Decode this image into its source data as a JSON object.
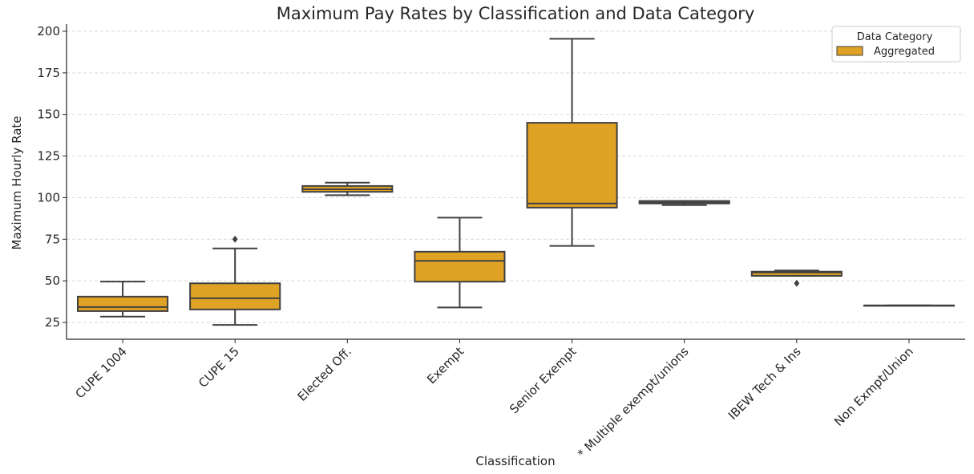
{
  "chart_data": {
    "type": "box",
    "title": "Maximum Pay Rates by Classification and Data Category",
    "xlabel": "Classification",
    "ylabel": "Maximum Hourly Rate",
    "ylim": [
      15,
      205
    ],
    "yticks": [
      25,
      50,
      75,
      100,
      125,
      150,
      175,
      200
    ],
    "grid": true,
    "legend": {
      "title": "Data Category",
      "position": "top-right",
      "entries": [
        {
          "label": "Aggregated",
          "color": "#e0a224"
        }
      ]
    },
    "categories": [
      "CUPE 1004",
      "CUPE 15",
      "Elected Off.",
      "Exempt",
      "Senior Exempt",
      "* Multiple exempt/unions",
      "IBEW Tech & Ins",
      "Non Exmpt/Union"
    ],
    "series": [
      {
        "name": "Aggregated",
        "color": "#e0a224",
        "boxes": [
          {
            "whislo": 28.5,
            "q1": 31.8,
            "med": 34.2,
            "q3": 40.5,
            "whishi": 49.5,
            "fliers": []
          },
          {
            "whislo": 23.5,
            "q1": 32.8,
            "med": 39.5,
            "q3": 48.5,
            "whishi": 69.5,
            "fliers": [
              75.0
            ]
          },
          {
            "whislo": 101.5,
            "q1": 103.5,
            "med": 105.0,
            "q3": 107.0,
            "whishi": 109.0,
            "fliers": []
          },
          {
            "whislo": 34.0,
            "q1": 49.5,
            "med": 62.0,
            "q3": 67.5,
            "whishi": 88.0,
            "fliers": []
          },
          {
            "whislo": 71.0,
            "q1": 94.0,
            "med": 96.5,
            "q3": 145.0,
            "whishi": 195.5,
            "fliers": []
          },
          {
            "whislo": 95.5,
            "q1": 96.5,
            "med": 97.0,
            "q3": 98.0,
            "whishi": 98.0,
            "fliers": []
          },
          {
            "whislo": 53.0,
            "q1": 53.0,
            "med": 55.0,
            "q3": 55.5,
            "whishi": 56.2,
            "fliers": [
              48.5
            ]
          },
          {
            "whislo": 35.2,
            "q1": 35.2,
            "med": 35.2,
            "q3": 35.2,
            "whishi": 35.2,
            "fliers": []
          }
        ]
      }
    ]
  }
}
